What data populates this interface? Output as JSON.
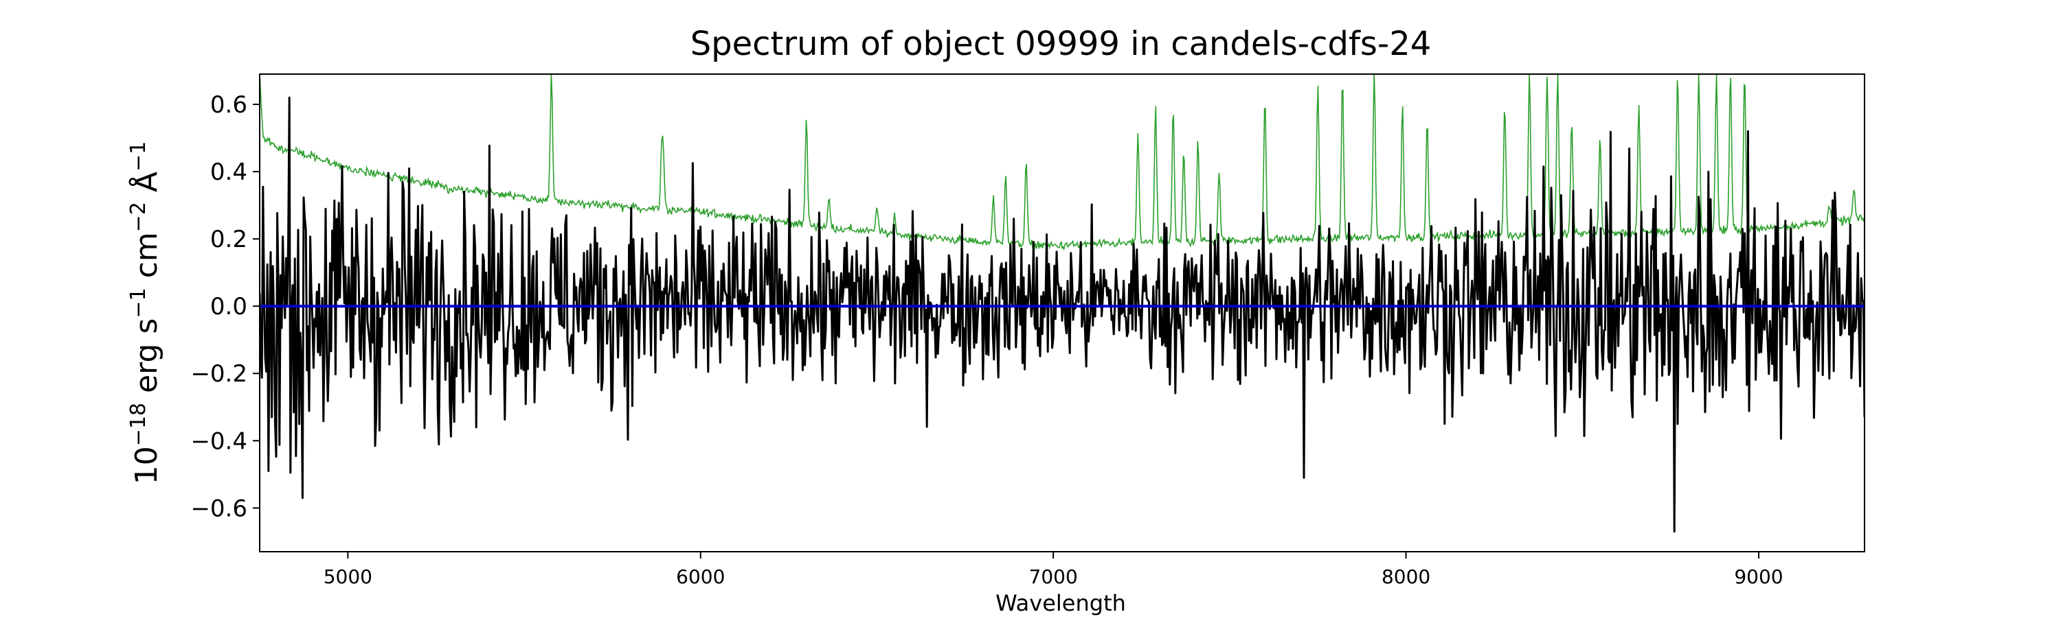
{
  "chart_data": {
    "type": "line",
    "title": "Spectrum of object 09999 in candels-cdfs-24",
    "xlabel": "Wavelength",
    "ylabel": {
      "base": "10",
      "exp1": "−18",
      "unit1": " erg s",
      "exp2": "−1",
      "unit2": " cm",
      "exp3": "−2",
      "unit3": " Å",
      "exp4": "−1"
    },
    "xlim": [
      4750,
      9300
    ],
    "ylim": [
      -0.73,
      0.69
    ],
    "xticks": [
      5000,
      6000,
      7000,
      8000,
      9000
    ],
    "xtick_labels": [
      "5000",
      "6000",
      "7000",
      "8000",
      "9000"
    ],
    "yticks": [
      -0.6,
      -0.4,
      -0.2,
      0.0,
      0.2,
      0.4,
      0.6
    ],
    "ytick_labels": [
      "−0.6",
      "−0.4",
      "−0.2",
      "0.0",
      "0.2",
      "0.4",
      "0.6"
    ],
    "grid": false,
    "legend": "none",
    "colors": {
      "flux": "#000000",
      "sky": "#2ca02c",
      "zero": "#0000cc"
    },
    "series": [
      {
        "role": "flux",
        "x_range": [
          4750,
          9300
        ],
        "approx_points": 1460,
        "noise_envelope": [
          [
            4750,
            0.22
          ],
          [
            5500,
            0.15
          ],
          [
            6500,
            0.12
          ],
          [
            7200,
            0.1
          ],
          [
            8200,
            0.14
          ],
          [
            8700,
            0.19
          ],
          [
            9300,
            0.15
          ]
        ],
        "notable_points": [
          [
            4775,
            -0.49
          ],
          [
            4785,
            -0.33
          ],
          [
            4835,
            0.62
          ],
          [
            4870,
            -0.57
          ],
          [
            5330,
            0.34
          ],
          [
            7710,
            -0.51
          ],
          [
            8440,
            0.33
          ],
          [
            8760,
            -0.67
          ],
          [
            8770,
            -0.35
          ],
          [
            8970,
            0.52
          ]
        ]
      },
      {
        "role": "sky",
        "continuum": [
          [
            4750,
            0.69
          ],
          [
            4760,
            0.5
          ],
          [
            4800,
            0.47
          ],
          [
            4850,
            0.46
          ],
          [
            5000,
            0.41
          ],
          [
            5300,
            0.35
          ],
          [
            5600,
            0.31
          ],
          [
            6000,
            0.28
          ],
          [
            6400,
            0.23
          ],
          [
            6800,
            0.19
          ],
          [
            7000,
            0.18
          ],
          [
            7300,
            0.19
          ],
          [
            7700,
            0.2
          ],
          [
            8200,
            0.21
          ],
          [
            8700,
            0.22
          ],
          [
            9000,
            0.23
          ],
          [
            9300,
            0.26
          ]
        ],
        "emission_lines": [
          [
            5577,
            0.69
          ],
          [
            5890,
            0.47
          ],
          [
            5895,
            0.4
          ],
          [
            6300,
            0.56
          ],
          [
            6364,
            0.32
          ],
          [
            6500,
            0.3
          ],
          [
            6550,
            0.27
          ],
          [
            6830,
            0.33
          ],
          [
            6865,
            0.4
          ],
          [
            6923,
            0.43
          ],
          [
            7240,
            0.52
          ],
          [
            7290,
            0.6
          ],
          [
            7340,
            0.58
          ],
          [
            7370,
            0.46
          ],
          [
            7410,
            0.5
          ],
          [
            7470,
            0.4
          ],
          [
            7600,
            0.62
          ],
          [
            7750,
            0.66
          ],
          [
            7820,
            0.67
          ],
          [
            7910,
            0.69
          ],
          [
            7990,
            0.6
          ],
          [
            8060,
            0.54
          ],
          [
            8280,
            0.6
          ],
          [
            8350,
            0.69
          ],
          [
            8400,
            0.69
          ],
          [
            8430,
            0.69
          ],
          [
            8470,
            0.55
          ],
          [
            8550,
            0.5
          ],
          [
            8660,
            0.6
          ],
          [
            8770,
            0.69
          ],
          [
            8830,
            0.69
          ],
          [
            8880,
            0.69
          ],
          [
            8920,
            0.69
          ],
          [
            8960,
            0.69
          ],
          [
            9200,
            0.3
          ],
          [
            9270,
            0.35
          ]
        ]
      },
      {
        "role": "zero",
        "y": 0.0
      }
    ]
  }
}
